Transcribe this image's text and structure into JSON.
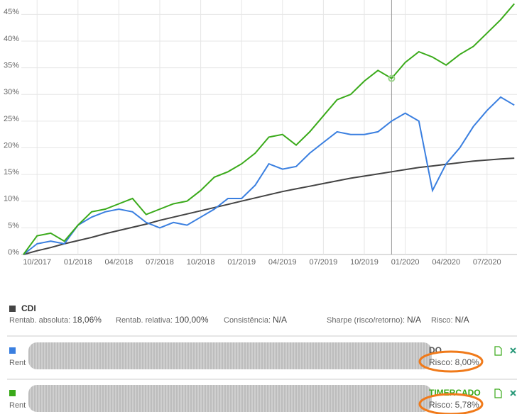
{
  "chart_data": {
    "type": "line",
    "categories": [
      null,
      "10/2017",
      null,
      null,
      "01/2018",
      null,
      null,
      "04/2018",
      null,
      null,
      "07/2018",
      null,
      null,
      "10/2018",
      null,
      null,
      "01/2019",
      null,
      null,
      "04/2019",
      null,
      null,
      "07/2019",
      null,
      null,
      "10/2019",
      null,
      null,
      "01/2020",
      null,
      null,
      "04/2020",
      null,
      null,
      "07/2020",
      null,
      null
    ],
    "series": [
      {
        "name": "CDI",
        "color": "#444444",
        "values": [
          0,
          0.7,
          1.3,
          2.0,
          2.6,
          3.2,
          3.9,
          4.5,
          5.1,
          5.7,
          6.4,
          7.0,
          7.6,
          8.2,
          8.8,
          9.4,
          10.0,
          10.6,
          11.2,
          11.8,
          12.3,
          12.8,
          13.3,
          13.8,
          14.3,
          14.7,
          15.1,
          15.5,
          15.9,
          16.3,
          16.6,
          16.9,
          17.2,
          17.5,
          17.7,
          17.9,
          18.06
        ]
      },
      {
        "name": "DO",
        "color": "#3a7fe0",
        "values": [
          0,
          2,
          2.5,
          2,
          5.5,
          7,
          8,
          8.5,
          8,
          6,
          5,
          6,
          5.5,
          7,
          8.5,
          10.5,
          10.5,
          13,
          17,
          16,
          16.5,
          19,
          21,
          23,
          22.5,
          22.5,
          23,
          25,
          26.5,
          25,
          12,
          17,
          20,
          24,
          27,
          29.5,
          28
        ]
      },
      {
        "name": "TIMERCADO",
        "color": "#3aaa1a",
        "values": [
          0,
          3.5,
          4,
          2.5,
          5.5,
          8,
          8.5,
          9.5,
          10.5,
          7.5,
          8.5,
          9.5,
          10,
          12,
          14.5,
          15.5,
          17,
          19,
          22,
          22.5,
          20.5,
          23,
          26,
          29,
          30,
          32.5,
          34.5,
          33,
          36,
          38,
          37,
          35.5,
          37.5,
          39,
          41.5,
          44,
          47
        ]
      }
    ],
    "ylim": [
      0,
      47.7
    ],
    "yticks": [
      {
        "value": 0,
        "label": "0%"
      },
      {
        "value": 5,
        "label": "5%"
      },
      {
        "value": 10,
        "label": "10%"
      },
      {
        "value": 15,
        "label": "15%"
      },
      {
        "value": 20,
        "label": "20%"
      },
      {
        "value": 25,
        "label": "25%"
      },
      {
        "value": 30,
        "label": "30%"
      },
      {
        "value": 35,
        "label": "35%"
      },
      {
        "value": 40,
        "label": "40%"
      },
      {
        "value": 45,
        "label": "45%"
      }
    ],
    "grid": true
  },
  "details": [
    {
      "stats": [
        {
          "label": "Rentab. absoluta:",
          "value": "18,06%"
        },
        {
          "label": "Rentab. relativa:",
          "value": "100,00%"
        },
        {
          "label": "Consistência:",
          "value": "N/A"
        },
        {
          "label": "Sharpe (risco/retorno):",
          "value": "N/A"
        },
        {
          "label": "Risco:",
          "value": "N/A"
        }
      ]
    },
    {
      "fragment": "Rent",
      "risk": "Risco: 8,00%"
    },
    {
      "fragment": "Rent",
      "risk": "Risco: 5,78%"
    }
  ]
}
